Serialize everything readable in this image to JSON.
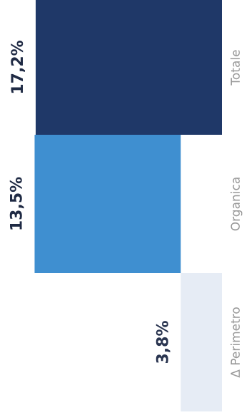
{
  "chart_data": {
    "type": "bar",
    "orientation": "waterfall",
    "categories": [
      "Δ Perimetro",
      "Organica",
      "Totale"
    ],
    "values": [
      3.8,
      13.5,
      17.2
    ],
    "value_labels": [
      "3,8%",
      "13,5%",
      "17,2%"
    ],
    "colors": [
      "#e6ecf5",
      "#3f8fd0",
      "#1f3868"
    ],
    "title": "",
    "xlabel": "",
    "ylabel": "",
    "ylim": [
      0,
      17.2
    ],
    "grid": false,
    "legend": "none"
  }
}
